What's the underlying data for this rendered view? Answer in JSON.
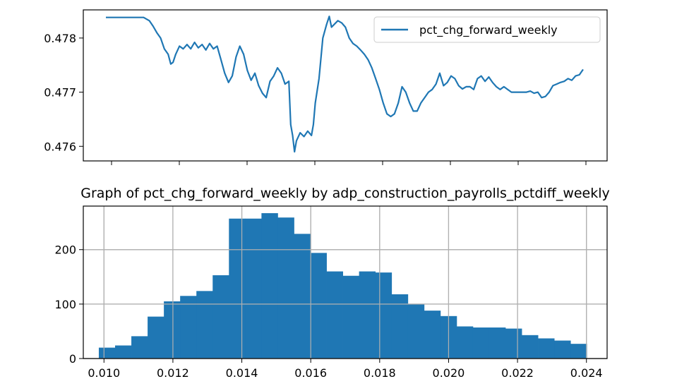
{
  "chart_data": [
    {
      "type": "line",
      "title": "",
      "xlabel": "",
      "ylabel": "",
      "ylim": [
        0.47573,
        0.47852
      ],
      "yticks": [
        0.476,
        0.477,
        0.478
      ],
      "ytick_labels": [
        "0.476",
        "0.477",
        "0.478"
      ],
      "xticks_count": 8,
      "grid": false,
      "legend": {
        "placement": "top-right",
        "entries": [
          "pct_chg_forward_weekly"
        ]
      },
      "series": [
        {
          "name": "pct_chg_forward_weekly",
          "color": "#1f77b4",
          "points": [
            [
              0,
              0.47838
            ],
            [
              5,
              0.47838
            ],
            [
              10,
              0.47838
            ],
            [
              11.5,
              0.47832
            ],
            [
              12.5,
              0.47822
            ],
            [
              13.5,
              0.4781
            ],
            [
              14.5,
              0.478
            ],
            [
              15.5,
              0.4778
            ],
            [
              16.5,
              0.4777
            ],
            [
              17.2,
              0.47752
            ],
            [
              17.8,
              0.47755
            ],
            [
              18.5,
              0.4777
            ],
            [
              19.5,
              0.47785
            ],
            [
              20.5,
              0.4778
            ],
            [
              21.5,
              0.47788
            ],
            [
              22.5,
              0.4778
            ],
            [
              23.5,
              0.47792
            ],
            [
              24.5,
              0.47782
            ],
            [
              25.5,
              0.47788
            ],
            [
              26.5,
              0.47778
            ],
            [
              27.5,
              0.4779
            ],
            [
              28.5,
              0.4778
            ],
            [
              29.5,
              0.47785
            ],
            [
              30.5,
              0.4776
            ],
            [
              31.5,
              0.47735
            ],
            [
              32.5,
              0.47718
            ],
            [
              33.5,
              0.4773
            ],
            [
              34.5,
              0.47765
            ],
            [
              35.5,
              0.47785
            ],
            [
              36.5,
              0.4777
            ],
            [
              37.5,
              0.4774
            ],
            [
              38.5,
              0.47722
            ],
            [
              39.5,
              0.47735
            ],
            [
              40.5,
              0.47712
            ],
            [
              41.5,
              0.47698
            ],
            [
              42.5,
              0.4769
            ],
            [
              43.5,
              0.4772
            ],
            [
              44.5,
              0.4773
            ],
            [
              45.5,
              0.47745
            ],
            [
              46.5,
              0.47735
            ],
            [
              47.5,
              0.47715
            ],
            [
              48.5,
              0.4772
            ],
            [
              49.0,
              0.4764
            ],
            [
              49.5,
              0.4762
            ],
            [
              50.0,
              0.4759
            ],
            [
              50.5,
              0.4761
            ],
            [
              51.5,
              0.47625
            ],
            [
              52.5,
              0.47618
            ],
            [
              53.5,
              0.47628
            ],
            [
              54.5,
              0.4762
            ],
            [
              55.0,
              0.4764
            ],
            [
              55.5,
              0.4768
            ],
            [
              56.5,
              0.47725
            ],
            [
              57.5,
              0.478
            ],
            [
              58.5,
              0.47825
            ],
            [
              59.2,
              0.4784
            ],
            [
              59.8,
              0.4782
            ],
            [
              60.5,
              0.47825
            ],
            [
              61.5,
              0.47832
            ],
            [
              62.5,
              0.47828
            ],
            [
              63.5,
              0.4782
            ],
            [
              64.5,
              0.478
            ],
            [
              65.5,
              0.4779
            ],
            [
              66.5,
              0.47785
            ],
            [
              67.5,
              0.47778
            ],
            [
              68.5,
              0.4777
            ],
            [
              69.5,
              0.4776
            ],
            [
              70.5,
              0.47745
            ],
            [
              71.5,
              0.47725
            ],
            [
              72.5,
              0.47705
            ],
            [
              73.5,
              0.4768
            ],
            [
              74.5,
              0.4766
            ],
            [
              75.5,
              0.47655
            ],
            [
              76.5,
              0.4766
            ],
            [
              77.5,
              0.4768
            ],
            [
              78.5,
              0.4771
            ],
            [
              79.5,
              0.477
            ],
            [
              80.5,
              0.4768
            ],
            [
              81.5,
              0.47665
            ],
            [
              82.5,
              0.47665
            ],
            [
              83.5,
              0.4768
            ],
            [
              84.5,
              0.4769
            ],
            [
              85.5,
              0.477
            ],
            [
              86.5,
              0.47705
            ],
            [
              87.5,
              0.47715
            ],
            [
              88.5,
              0.47735
            ],
            [
              89.5,
              0.47712
            ],
            [
              90.5,
              0.47718
            ],
            [
              91.5,
              0.4773
            ],
            [
              92.5,
              0.47725
            ],
            [
              93.5,
              0.47712
            ],
            [
              94.5,
              0.47706
            ],
            [
              95.5,
              0.4771
            ],
            [
              96.5,
              0.4771
            ],
            [
              97.5,
              0.47705
            ],
            [
              98.5,
              0.47725
            ],
            [
              99.5,
              0.4773
            ],
            [
              100.5,
              0.4772
            ],
            [
              101.5,
              0.47728
            ],
            [
              102.5,
              0.47718
            ],
            [
              103.5,
              0.4771
            ],
            [
              104.5,
              0.47705
            ],
            [
              105.5,
              0.4771
            ],
            [
              106.5,
              0.47705
            ],
            [
              107.5,
              0.477
            ],
            [
              108.5,
              0.477
            ],
            [
              109.5,
              0.477
            ],
            [
              110.5,
              0.477
            ],
            [
              111.5,
              0.477
            ],
            [
              112.5,
              0.47702
            ],
            [
              113.5,
              0.47698
            ],
            [
              114.5,
              0.477
            ],
            [
              115.5,
              0.4769
            ],
            [
              116.5,
              0.47692
            ],
            [
              117.5,
              0.477
            ],
            [
              118.5,
              0.47712
            ],
            [
              119.5,
              0.47715
            ],
            [
              120.5,
              0.47718
            ],
            [
              121.5,
              0.4772
            ],
            [
              122.5,
              0.47725
            ],
            [
              123.5,
              0.47722
            ],
            [
              124.5,
              0.4773
            ],
            [
              125.5,
              0.47732
            ],
            [
              126.5,
              0.47742
            ]
          ]
        }
      ]
    },
    {
      "type": "bar",
      "title": "Graph of pct_chg_forward_weekly by adp_construction_payrolls_pctdiff_weekly",
      "xlabel": "",
      "ylabel": "",
      "xlim": [
        0.0094,
        0.0246
      ],
      "ylim": [
        0,
        280
      ],
      "xticks": [
        0.01,
        0.012,
        0.014,
        0.016,
        0.018,
        0.02,
        0.022,
        0.024
      ],
      "xtick_labels": [
        "0.010",
        "0.012",
        "0.014",
        "0.016",
        "0.018",
        "0.020",
        "0.022",
        "0.024"
      ],
      "yticks": [
        0,
        100,
        200
      ],
      "ytick_labels": [
        "0",
        "100",
        "200"
      ],
      "grid": true,
      "color": "#1f77b4",
      "bin_start": 0.00985,
      "bin_width": 0.000472,
      "values": [
        20,
        24,
        41,
        77,
        105,
        115,
        124,
        153,
        257,
        257,
        267,
        259,
        229,
        194,
        160,
        152,
        160,
        158,
        118,
        100,
        88,
        78,
        59,
        57,
        57,
        55,
        43,
        37,
        33,
        27
      ]
    }
  ]
}
